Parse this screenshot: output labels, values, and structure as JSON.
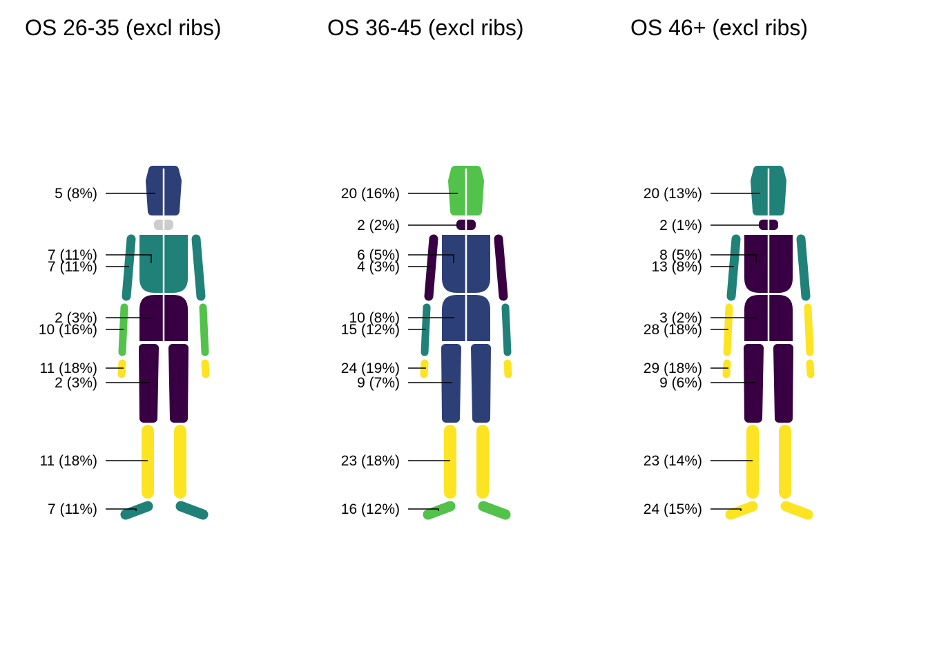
{
  "panels": [
    {
      "title": "OS 26-35 (excl ribs)",
      "colors": {
        "head": "#2d3f77",
        "neck": "#cccccc",
        "chest": "#1f8178",
        "abdomen": "#380043",
        "upperarm_r": "#1f8178",
        "upperarm_l": "#1f8178",
        "forearm_r": "#52c24a",
        "forearm_l": "#52c24a",
        "hand_r": "#fde423",
        "hand_l": "#fde423",
        "thigh_r": "#380043",
        "thigh_l": "#380043",
        "shin_r": "#fde423",
        "shin_l": "#fde423",
        "foot_r": "#1f8178",
        "foot_l": "#1f8178"
      },
      "labels": [
        "5 (8%)",
        "",
        "7 (11%)",
        "7 (11%)",
        "2 (3%)",
        "10 (16%)",
        "11 (18%)",
        "2 (3%)",
        "11 (18%)",
        "7 (11%)"
      ]
    },
    {
      "title": "OS 36-45 (excl ribs)",
      "colors": {
        "head": "#52c24a",
        "neck": "#380043",
        "chest": "#2d3f77",
        "abdomen": "#2d3f77",
        "upperarm_r": "#380043",
        "upperarm_l": "#380043",
        "forearm_r": "#1f8178",
        "forearm_l": "#1f8178",
        "hand_r": "#fde423",
        "hand_l": "#fde423",
        "thigh_r": "#2d3f77",
        "thigh_l": "#2d3f77",
        "shin_r": "#fde423",
        "shin_l": "#fde423",
        "foot_r": "#52c24a",
        "foot_l": "#52c24a"
      },
      "labels": [
        "20 (16%)",
        "2 (2%)",
        "6 (5%)",
        "4 (3%)",
        "10 (8%)",
        "15 (12%)",
        "24 (19%)",
        "9 (7%)",
        "23 (18%)",
        "16 (12%)"
      ]
    },
    {
      "title": "OS 46+ (excl ribs)",
      "colors": {
        "head": "#1f8178",
        "neck": "#380043",
        "chest": "#380043",
        "abdomen": "#380043",
        "upperarm_r": "#1f8178",
        "upperarm_l": "#1f8178",
        "forearm_r": "#fde423",
        "forearm_l": "#fde423",
        "hand_r": "#fde423",
        "hand_l": "#fde423",
        "thigh_r": "#380043",
        "thigh_l": "#380043",
        "shin_r": "#fde423",
        "shin_l": "#fde423",
        "foot_r": "#fde423",
        "foot_l": "#fde423"
      },
      "labels": [
        "20 (13%)",
        "2 (1%)",
        "8 (5%)",
        "13 (8%)",
        "3 (2%)",
        "28 (18%)",
        "29 (18%)",
        "9 (6%)",
        "23 (14%)",
        "24 (15%)"
      ]
    }
  ]
}
